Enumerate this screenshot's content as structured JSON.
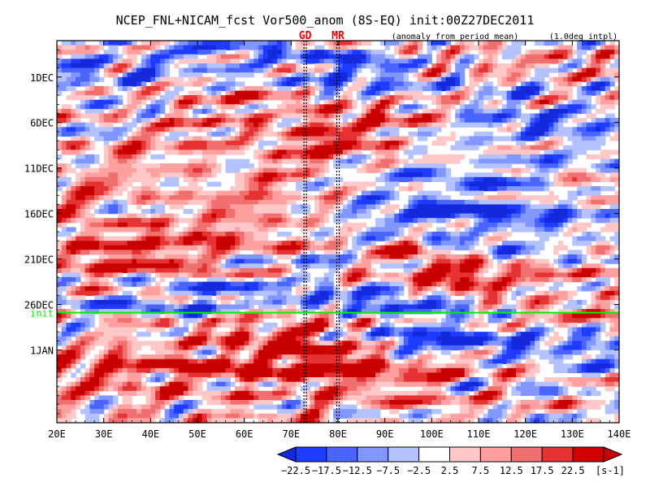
{
  "chart_data": {
    "type": "heatmap",
    "title": "NCEP_FNL+NICAM_fcst Vor500_anom (8S-EQ) init:00Z27DEC2011",
    "subtitle_left": "(anomaly from period mean)",
    "subtitle_right": "(1.0deg intpl)",
    "xlabel": "",
    "ylabel": "",
    "xlim": [
      20,
      140
    ],
    "ylim_days": [
      -3,
      39
    ],
    "x_ticks": [
      20,
      30,
      40,
      50,
      60,
      70,
      80,
      90,
      100,
      110,
      120,
      130,
      140
    ],
    "x_tick_labels": [
      "20E",
      "30E",
      "40E",
      "50E",
      "60E",
      "70E",
      "80E",
      "90E",
      "100E",
      "110E",
      "120E",
      "130E",
      "140E"
    ],
    "y_ticks": [
      1,
      6,
      11,
      16,
      21,
      26,
      31
    ],
    "y_tick_labels": [
      "1DEC",
      "6DEC",
      "11DEC",
      "16DEC",
      "21DEC",
      "26DEC",
      "1JAN"
    ],
    "init_line": {
      "label": "init",
      "day": 26.9,
      "color": "#00ee00"
    },
    "reference_lines": [
      {
        "label": "GD",
        "lon": 73,
        "color": "#ee0000"
      },
      {
        "label": "MR",
        "lon": 80,
        "color": "#ee0000"
      }
    ],
    "colorbar": {
      "levels": [
        -22.5,
        -17.5,
        -12.5,
        -7.5,
        -2.5,
        2.5,
        7.5,
        12.5,
        17.5,
        22.5
      ],
      "level_labels": [
        "−22.5",
        "−17.5",
        "−12.5",
        "−7.5",
        "−2.5",
        "2.5",
        "7.5",
        "12.5",
        "17.5",
        "22.5"
      ],
      "colors": [
        "#1e3cff",
        "#4a64ff",
        "#8296ff",
        "#b4c3ff",
        "#ffffff",
        "#ffc8c8",
        "#ffa0a0",
        "#f07070",
        "#e63232",
        "#d20000"
      ],
      "below_color": "#1428dc",
      "above_color": "#c80000",
      "units": "[s-1]"
    },
    "anomaly_features": [
      {
        "from": [
          22,
          15
        ],
        "to": [
          68,
          1
        ],
        "amplitude": 10,
        "width": 4
      },
      {
        "from": [
          40,
          20
        ],
        "to": [
          80,
          8
        ],
        "amplitude": 11,
        "width": 3
      },
      {
        "from": [
          80,
          7
        ],
        "to": [
          95,
          5
        ],
        "amplitude": 13,
        "width": 3
      },
      {
        "from": [
          110,
          7
        ],
        "to": [
          140,
          12
        ],
        "amplitude": 8,
        "width": 4
      },
      {
        "from": [
          100,
          0
        ],
        "to": [
          140,
          1
        ],
        "amplitude": 7,
        "width": 3
      },
      {
        "from": [
          30,
          0
        ],
        "to": [
          45,
          -2
        ],
        "amplitude": -9,
        "width": 2.5
      },
      {
        "from": [
          68,
          -1
        ],
        "to": [
          85,
          0
        ],
        "amplitude": -14,
        "width": 2.5
      },
      {
        "from": [
          85,
          1
        ],
        "to": [
          110,
          4
        ],
        "amplitude": -12,
        "width": 3
      },
      {
        "from": [
          100,
          8
        ],
        "to": [
          120,
          6
        ],
        "amplitude": -12,
        "width": 3
      },
      {
        "from": [
          95,
          14
        ],
        "to": [
          115,
          16
        ],
        "amplitude": -11,
        "width": 3
      },
      {
        "from": [
          55,
          25
        ],
        "to": [
          130,
          9
        ],
        "amplitude": -11,
        "width": 2.5
      },
      {
        "from": [
          110,
          20
        ],
        "to": [
          140,
          18
        ],
        "amplitude": -8,
        "width": 3
      },
      {
        "from": [
          20,
          21
        ],
        "to": [
          70,
          21
        ],
        "amplitude": 11,
        "width": 3
      },
      {
        "from": [
          70,
          17
        ],
        "to": [
          100,
          14
        ],
        "amplitude": 6,
        "width": 3
      },
      {
        "from": [
          95,
          20
        ],
        "to": [
          105,
          23
        ],
        "amplitude": 17,
        "width": 2
      },
      {
        "from": [
          105,
          22
        ],
        "to": [
          140,
          20
        ],
        "amplitude": 9,
        "width": 2.5
      },
      {
        "from": [
          105,
          25
        ],
        "to": [
          140,
          27
        ],
        "amplitude": 10,
        "width": 2.5
      },
      {
        "from": [
          80,
          25
        ],
        "to": [
          102,
          26
        ],
        "amplitude": -15,
        "width": 2
      },
      {
        "from": [
          22,
          26
        ],
        "to": [
          50,
          25
        ],
        "amplitude": -6,
        "width": 2
      },
      {
        "from": [
          20,
          33
        ],
        "to": [
          75,
          33
        ],
        "amplitude": 16,
        "width": 3.5
      },
      {
        "from": [
          66,
          29
        ],
        "to": [
          75,
          29
        ],
        "amplitude": 14,
        "width": 2.5
      },
      {
        "from": [
          80,
          32
        ],
        "to": [
          95,
          34
        ],
        "amplitude": 13,
        "width": 3
      },
      {
        "from": [
          100,
          30
        ],
        "to": [
          140,
          32
        ],
        "amplitude": -12,
        "width": 3
      },
      {
        "from": [
          75,
          29
        ],
        "to": [
          100,
          30
        ],
        "amplitude": -8,
        "width": 2
      },
      {
        "from": [
          110,
          33
        ],
        "to": [
          140,
          35
        ],
        "amplitude": 7,
        "width": 2
      }
    ]
  }
}
